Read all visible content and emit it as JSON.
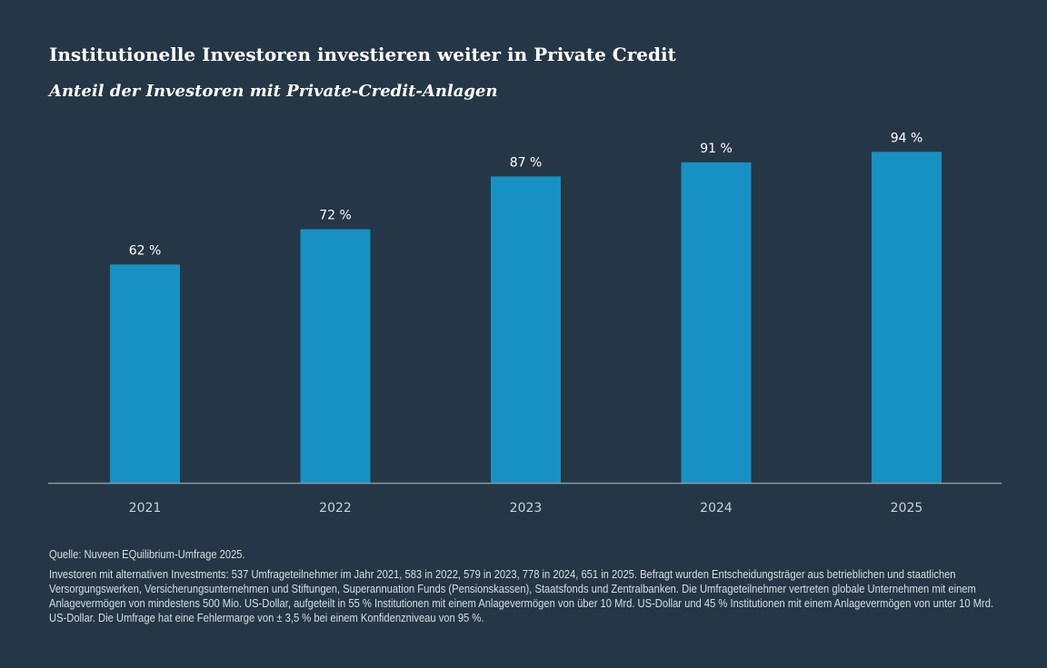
{
  "chart_data": {
    "type": "bar",
    "title": "Institutionelle Investoren investieren weiter in Private Credit",
    "subtitle": "Anteil der Investoren mit Private-Credit-Anlagen",
    "categories": [
      "2021",
      "2022",
      "2023",
      "2024",
      "2025"
    ],
    "values": [
      62,
      72,
      87,
      91,
      94
    ],
    "data_labels": [
      "62 %",
      "72 %",
      "87 %",
      "91 %",
      "94 %"
    ],
    "unit": "%",
    "ylim": [
      0,
      100
    ],
    "grid": false,
    "legend": "none",
    "xlabel": "",
    "ylabel": ""
  },
  "colors": {
    "background": "#253746",
    "bar": "#1791c3",
    "axis": "#8a97a3",
    "tick_label": "#c9d1d8",
    "data_label": "#ffffff"
  },
  "footer": {
    "source": "Quelle: Nuveen EQuilibrium-Umfrage 2025.",
    "note": "Investoren mit alternativen Investments: 537 Umfrageteilnehmer im Jahr 2021, 583 in 2022, 579 in 2023, 778 in 2024, 651 in 2025. Befragt wurden Entscheidungsträger aus betrieblichen und staatlichen Versorgungswerken, Versicherungsunternehmen und Stiftungen, Superannuation Funds (Pensionskassen), Staatsfonds und Zentralbanken. Die Umfrageteilnehmer vertreten globale Unternehmen mit einem Anlagevermögen von mindestens 500 Mio. US-Dollar, aufgeteilt in 55 % Institutionen mit einem Anlagevermögen von über 10 Mrd. US-Dollar und 45 % Institutionen mit einem Anlagevermögen von unter 10 Mrd. US-Dollar. Die Umfrage hat eine Fehlermarge von ± 3,5 % bei einem Konfidenzniveau von 95 %."
  }
}
